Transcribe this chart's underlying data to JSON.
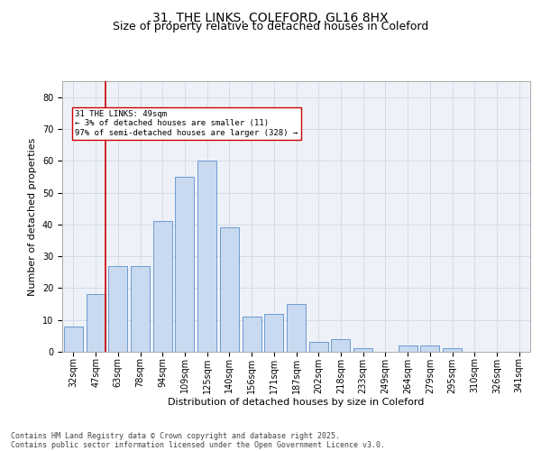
{
  "title1": "31, THE LINKS, COLEFORD, GL16 8HX",
  "title2": "Size of property relative to detached houses in Coleford",
  "xlabel": "Distribution of detached houses by size in Coleford",
  "ylabel": "Number of detached properties",
  "categories": [
    "32sqm",
    "47sqm",
    "63sqm",
    "78sqm",
    "94sqm",
    "109sqm",
    "125sqm",
    "140sqm",
    "156sqm",
    "171sqm",
    "187sqm",
    "202sqm",
    "218sqm",
    "233sqm",
    "249sqm",
    "264sqm",
    "279sqm",
    "295sqm",
    "310sqm",
    "326sqm",
    "341sqm"
  ],
  "values": [
    8,
    18,
    27,
    27,
    41,
    55,
    60,
    39,
    11,
    12,
    15,
    3,
    4,
    1,
    0,
    2,
    2,
    1,
    0,
    0,
    0
  ],
  "bar_color": "#c9d9f0",
  "bar_edge_color": "#5b8fcb",
  "grid_color": "#d0d8e8",
  "bg_color": "#eef2f8",
  "vline_color": "#cc0000",
  "annotation_text": "31 THE LINKS: 49sqm\n← 3% of detached houses are smaller (11)\n97% of semi-detached houses are larger (328) →",
  "ylim": [
    0,
    85
  ],
  "yticks": [
    0,
    10,
    20,
    30,
    40,
    50,
    60,
    70,
    80
  ],
  "footer1": "Contains HM Land Registry data © Crown copyright and database right 2025.",
  "footer2": "Contains public sector information licensed under the Open Government Licence v3.0.",
  "title_fontsize": 10,
  "subtitle_fontsize": 9,
  "label_fontsize": 8,
  "tick_fontsize": 7,
  "footer_fontsize": 6
}
